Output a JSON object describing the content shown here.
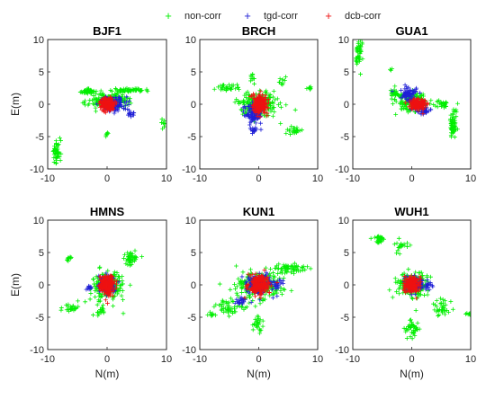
{
  "legend": [
    {
      "label": "non-corr",
      "color": "#00ee00"
    },
    {
      "label": "tgd-corr",
      "color": "#1f1fd6"
    },
    {
      "label": "dcb-corr",
      "color": "#ee1111"
    }
  ],
  "chart_data": [
    {
      "type": "scatter",
      "title": "BJF1",
      "xlabel": "",
      "ylabel": "E(m)",
      "xlim": [
        -10,
        10
      ],
      "ylim": [
        -10,
        10
      ],
      "xticks": [
        "-10",
        "0",
        "10"
      ],
      "yticks": [
        "10",
        "5",
        "0",
        "-5",
        "-10"
      ],
      "series": [
        {
          "name": "non-corr",
          "clusters": [
            {
              "center": [
                0,
                0.5
              ],
              "spread": [
                3,
                1
              ],
              "count": 200
            },
            {
              "center": [
                4,
                2.2
              ],
              "spread": [
                3,
                0.4
              ],
              "count": 60
            },
            {
              "center": [
                -3,
                2
              ],
              "spread": [
                1.5,
                0.4
              ],
              "count": 40
            },
            {
              "center": [
                -8.5,
                -7.5
              ],
              "spread": [
                0.6,
                1.8
              ],
              "count": 50
            },
            {
              "center": [
                9.5,
                -3
              ],
              "spread": [
                0.4,
                0.6
              ],
              "count": 10
            },
            {
              "center": [
                0,
                -4.5
              ],
              "spread": [
                0.2,
                0.5
              ],
              "count": 6
            }
          ]
        },
        {
          "name": "tgd-corr",
          "clusters": [
            {
              "center": [
                1,
                0
              ],
              "spread": [
                2.2,
                1.2
              ],
              "count": 110
            },
            {
              "center": [
                4,
                -1.5
              ],
              "spread": [
                0.8,
                0.5
              ],
              "count": 15
            }
          ]
        },
        {
          "name": "dcb-corr",
          "clusters": [
            {
              "center": [
                0,
                0
              ],
              "spread": [
                1.3,
                0.9
              ],
              "count": 160
            }
          ]
        }
      ]
    },
    {
      "type": "scatter",
      "title": "BRCH",
      "xlabel": "",
      "ylabel": "",
      "xlim": [
        -10,
        10
      ],
      "ylim": [
        -10,
        10
      ],
      "xticks": [
        "-10",
        "0",
        "10"
      ],
      "yticks": [
        "10",
        "5",
        "0",
        "-5",
        "-10"
      ],
      "series": [
        {
          "name": "non-corr",
          "clusters": [
            {
              "center": [
                0,
                0
              ],
              "spread": [
                3.5,
                2
              ],
              "count": 200
            },
            {
              "center": [
                -5,
                2.5
              ],
              "spread": [
                2,
                0.5
              ],
              "count": 30
            },
            {
              "center": [
                6,
                -4
              ],
              "spread": [
                1.5,
                0.8
              ],
              "count": 25
            },
            {
              "center": [
                8.5,
                2.5
              ],
              "spread": [
                0.7,
                0.3
              ],
              "count": 8
            },
            {
              "center": [
                -1,
                4.2
              ],
              "spread": [
                0.4,
                0.6
              ],
              "count": 10
            },
            {
              "center": [
                4,
                3.5
              ],
              "spread": [
                0.8,
                0.5
              ],
              "count": 10
            }
          ]
        },
        {
          "name": "tgd-corr",
          "clusters": [
            {
              "center": [
                -1,
                -1.5
              ],
              "spread": [
                1.5,
                1.5
              ],
              "count": 110
            },
            {
              "center": [
                -1,
                -4
              ],
              "spread": [
                0.6,
                0.4
              ],
              "count": 15
            }
          ]
        },
        {
          "name": "dcb-corr",
          "clusters": [
            {
              "center": [
                0.3,
                0
              ],
              "spread": [
                1.3,
                1.5
              ],
              "count": 170
            }
          ]
        }
      ]
    },
    {
      "type": "scatter",
      "title": "GUA1",
      "xlabel": "",
      "ylabel": "",
      "xlim": [
        -10,
        10
      ],
      "ylim": [
        -10,
        10
      ],
      "xticks": [
        "-10",
        "0",
        "10"
      ],
      "yticks": [
        "10",
        "5",
        "0",
        "-5",
        "-10"
      ],
      "series": [
        {
          "name": "non-corr",
          "clusters": [
            {
              "center": [
                0,
                0.5
              ],
              "spread": [
                2.5,
                1.5
              ],
              "count": 150
            },
            {
              "center": [
                -9,
                8
              ],
              "spread": [
                0.6,
                1.8
              ],
              "count": 45
            },
            {
              "center": [
                7,
                -3
              ],
              "spread": [
                0.6,
                2.5
              ],
              "count": 60
            },
            {
              "center": [
                -3,
                1.5
              ],
              "spread": [
                0.8,
                0.8
              ],
              "count": 25
            },
            {
              "center": [
                5,
                0
              ],
              "spread": [
                1.5,
                0.6
              ],
              "count": 25
            },
            {
              "center": [
                -3.5,
                5.5
              ],
              "spread": [
                0.3,
                0.3
              ],
              "count": 3
            }
          ]
        },
        {
          "name": "tgd-corr",
          "clusters": [
            {
              "center": [
                -0.5,
                1.5
              ],
              "spread": [
                1.3,
                1.2
              ],
              "count": 80
            },
            {
              "center": [
                2,
                -1
              ],
              "spread": [
                1.2,
                0.8
              ],
              "count": 40
            }
          ]
        },
        {
          "name": "dcb-corr",
          "clusters": [
            {
              "center": [
                1,
                0
              ],
              "spread": [
                1.5,
                0.9
              ],
              "count": 140
            }
          ]
        }
      ]
    },
    {
      "type": "scatter",
      "title": "HMNS",
      "xlabel": "N(m)",
      "ylabel": "E(m)",
      "xlim": [
        -10,
        10
      ],
      "ylim": [
        -10,
        10
      ],
      "xticks": [
        "-10",
        "0",
        "10"
      ],
      "yticks": [
        "10",
        "5",
        "0",
        "-5",
        "-10"
      ],
      "series": [
        {
          "name": "non-corr",
          "clusters": [
            {
              "center": [
                0,
                0
              ],
              "spread": [
                2.5,
                2
              ],
              "count": 190
            },
            {
              "center": [
                4,
                4
              ],
              "spread": [
                1,
                1
              ],
              "count": 40
            },
            {
              "center": [
                -6.5,
                4
              ],
              "spread": [
                0.4,
                0.4
              ],
              "count": 10
            },
            {
              "center": [
                -6,
                -3.5
              ],
              "spread": [
                2,
                0.6
              ],
              "count": 25
            },
            {
              "center": [
                -1,
                -4
              ],
              "spread": [
                1,
                0.8
              ],
              "count": 20
            }
          ]
        },
        {
          "name": "tgd-corr",
          "clusters": [
            {
              "center": [
                0,
                0
              ],
              "spread": [
                1.5,
                1.5
              ],
              "count": 90
            },
            {
              "center": [
                -3,
                -0.5
              ],
              "spread": [
                0.5,
                0.4
              ],
              "count": 10
            }
          ]
        },
        {
          "name": "dcb-corr",
          "clusters": [
            {
              "center": [
                0,
                0
              ],
              "spread": [
                1.3,
                1.5
              ],
              "count": 170
            }
          ]
        }
      ]
    },
    {
      "type": "scatter",
      "title": "KUN1",
      "xlabel": "N(m)",
      "ylabel": "",
      "xlim": [
        -10,
        10
      ],
      "ylim": [
        -10,
        10
      ],
      "xticks": [
        "-10",
        "0",
        "10"
      ],
      "yticks": [
        "10",
        "5",
        "0",
        "-5",
        "-10"
      ],
      "series": [
        {
          "name": "non-corr",
          "clusters": [
            {
              "center": [
                0,
                0
              ],
              "spread": [
                4,
                2
              ],
              "count": 230
            },
            {
              "center": [
                5,
                2.5
              ],
              "spread": [
                3,
                0.8
              ],
              "count": 60
            },
            {
              "center": [
                -5,
                -3.5
              ],
              "spread": [
                2.5,
                1.2
              ],
              "count": 50
            },
            {
              "center": [
                0,
                -6
              ],
              "spread": [
                1,
                1.2
              ],
              "count": 25
            },
            {
              "center": [
                -8,
                -4.5
              ],
              "spread": [
                0.7,
                0.4
              ],
              "count": 8
            }
          ]
        },
        {
          "name": "tgd-corr",
          "clusters": [
            {
              "center": [
                0,
                0
              ],
              "spread": [
                2.5,
                1.5
              ],
              "count": 120
            },
            {
              "center": [
                -3,
                -2.5
              ],
              "spread": [
                1,
                0.6
              ],
              "count": 20
            },
            {
              "center": [
                3,
                0
              ],
              "spread": [
                1,
                1
              ],
              "count": 20
            }
          ]
        },
        {
          "name": "dcb-corr",
          "clusters": [
            {
              "center": [
                0,
                0
              ],
              "spread": [
                1.8,
                1.5
              ],
              "count": 190
            }
          ]
        }
      ]
    },
    {
      "type": "scatter",
      "title": "WUH1",
      "xlabel": "N(m)",
      "ylabel": "",
      "xlim": [
        -10,
        10
      ],
      "ylim": [
        -10,
        10
      ],
      "xticks": [
        "-10",
        "0",
        "10"
      ],
      "yticks": [
        "10",
        "5",
        "0",
        "-5",
        "-10"
      ],
      "series": [
        {
          "name": "non-corr",
          "clusters": [
            {
              "center": [
                0,
                0
              ],
              "spread": [
                2.5,
                2
              ],
              "count": 200
            },
            {
              "center": [
                -5.5,
                7
              ],
              "spread": [
                1,
                0.6
              ],
              "count": 35
            },
            {
              "center": [
                -2,
                6
              ],
              "spread": [
                1.5,
                1.2
              ],
              "count": 20
            },
            {
              "center": [
                0,
                -7
              ],
              "spread": [
                1.2,
                1.5
              ],
              "count": 40
            },
            {
              "center": [
                5,
                -3.5
              ],
              "spread": [
                1.5,
                1.5
              ],
              "count": 35
            },
            {
              "center": [
                9.5,
                -4.5
              ],
              "spread": [
                0.5,
                0.4
              ],
              "count": 6
            }
          ]
        },
        {
          "name": "tgd-corr",
          "clusters": [
            {
              "center": [
                0.5,
                0
              ],
              "spread": [
                1.5,
                1.2
              ],
              "count": 90
            },
            {
              "center": [
                3,
                0
              ],
              "spread": [
                0.8,
                0.6
              ],
              "count": 15
            }
          ]
        },
        {
          "name": "dcb-corr",
          "clusters": [
            {
              "center": [
                0,
                0
              ],
              "spread": [
                1.3,
                1.2
              ],
              "count": 170
            }
          ]
        }
      ]
    }
  ]
}
